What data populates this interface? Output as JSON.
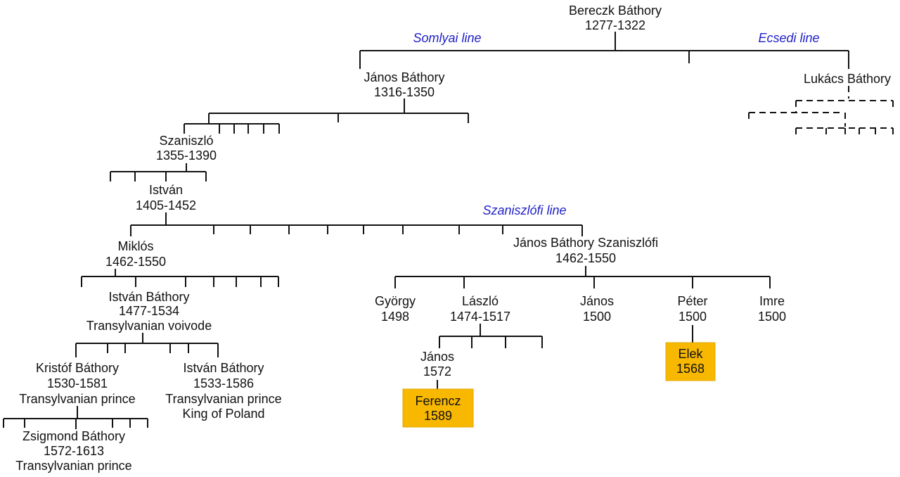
{
  "lines": {
    "somlyai": "Somlyai line",
    "ecsedi": "Ecsedi line",
    "szaniszlofi": "Szaniszlófi line"
  },
  "people": {
    "bereczk": [
      "Bereczk Báthory",
      "1277-1322"
    ],
    "janos_bathory": [
      "János Báthory",
      "1316-1350"
    ],
    "lukacs": [
      "Lukács Báthory"
    ],
    "szaniszlo": [
      "Szaniszló",
      "1355-1390"
    ],
    "istvan": [
      "István",
      "1405-1452"
    ],
    "miklos": [
      "Miklós",
      "1462-1550"
    ],
    "janos_szaniszlofi": [
      "János Báthory Szaniszlófi",
      "1462-1550"
    ],
    "istvan_voivode": [
      "István Báthory",
      "1477-1534",
      "Transylvanian voivode"
    ],
    "gyorgy": [
      "György",
      "1498"
    ],
    "laszlo": [
      "László",
      "1474-1517"
    ],
    "janos_1500": [
      "János",
      "1500"
    ],
    "peter": [
      "Péter",
      "1500"
    ],
    "imre": [
      "Imre",
      "1500"
    ],
    "kristof": [
      "Kristóf Báthory",
      "1530-1581",
      "Transylvanian prince"
    ],
    "istvan_king": [
      "István Báthory",
      "1533-1586",
      "Transylvanian prince",
      "King of Poland"
    ],
    "janos_1572": [
      "János",
      "1572"
    ],
    "elek": [
      "Elek",
      "1568"
    ],
    "ferencz": [
      "Ferencz",
      "1589"
    ],
    "zsigmond": [
      "Zsigmond Báthory",
      "1572-1613",
      "Transylvanian prince"
    ]
  },
  "colors": {
    "highlight": "#f8b800",
    "line_label": "#1f1fc8"
  }
}
